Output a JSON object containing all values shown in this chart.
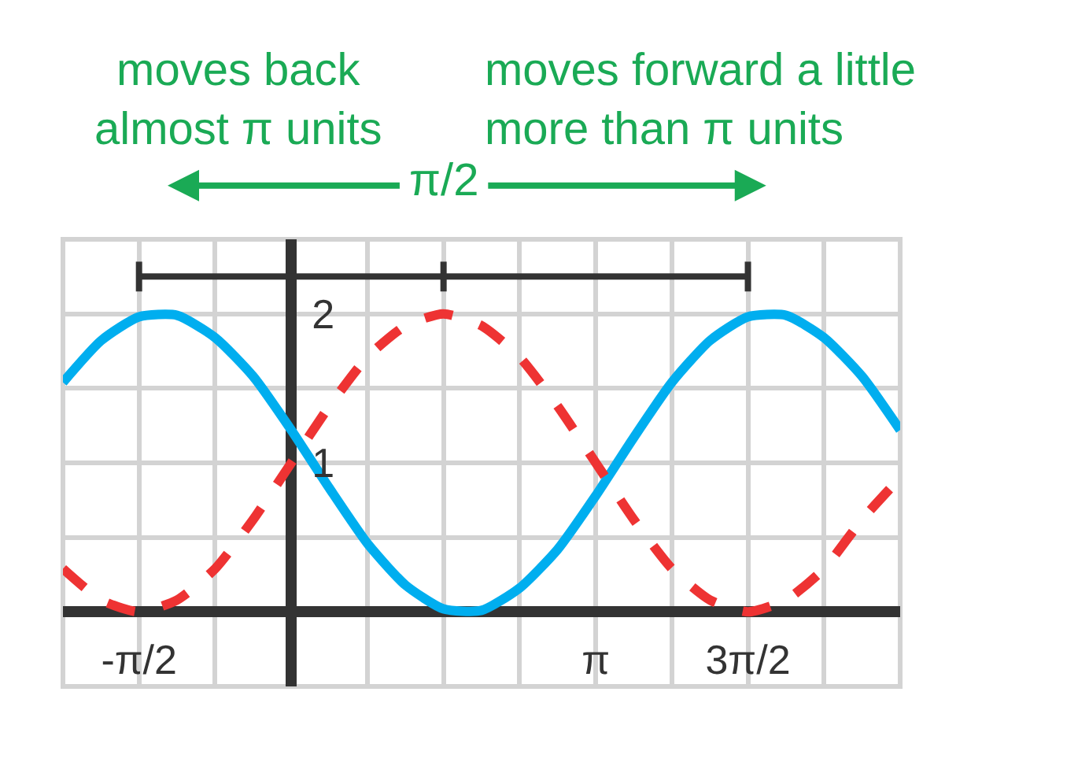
{
  "chart_data": {
    "type": "line",
    "x": [
      -2.356,
      -1.963,
      -1.571,
      -1.178,
      -0.785,
      -0.393,
      0,
      0.393,
      0.785,
      1.178,
      1.571,
      1.963,
      2.356,
      2.749,
      3.142,
      3.534,
      3.927,
      4.32,
      4.712,
      5.105,
      5.498,
      5.89,
      6.283
    ],
    "series": [
      {
        "color": "#00aeef",
        "line_style": "solid",
        "values": [
          1.54,
          1.82,
          1.98,
          1.99,
          1.84,
          1.58,
          1.22,
          0.83,
          0.46,
          0.18,
          0.02,
          0.01,
          0.16,
          0.42,
          0.78,
          1.17,
          1.54,
          1.82,
          1.98,
          1.99,
          1.84,
          1.58,
          1.22
        ]
      },
      {
        "color": "#ee3333",
        "line_style": "dashed",
        "values": [
          0.29,
          0.08,
          0,
          0.08,
          0.29,
          0.62,
          1,
          1.38,
          1.71,
          1.92,
          2,
          1.92,
          1.71,
          1.38,
          1,
          0.62,
          0.29,
          0.08,
          0,
          0.08,
          0.29,
          0.62,
          0.9
        ]
      },
      {
        "color": "#333333",
        "line_style": "solid",
        "x": [
          -1.571,
          1.571,
          4.712
        ],
        "values": [
          2.25,
          2.25,
          2.25
        ],
        "errors": [
          0.1,
          0.1,
          0.1
        ]
      }
    ],
    "xlim": [
      -2.356,
      6.283
    ],
    "ylim": [
      -0.5,
      2.5
    ],
    "xticks": [
      {
        "value": -2.356,
        "label": null
      },
      {
        "value": -1.571,
        "label": "-π/2"
      },
      {
        "value": -0.785,
        "label": null
      },
      {
        "value": 0,
        "label": null
      },
      {
        "value": 0.785,
        "label": null
      },
      {
        "value": 1.571,
        "label": null
      },
      {
        "value": 2.356,
        "label": null
      },
      {
        "value": 3.142,
        "label": "π"
      },
      {
        "value": 3.927,
        "label": null
      },
      {
        "value": 4.712,
        "label": "3π/2"
      },
      {
        "value": 5.498,
        "label": null
      },
      {
        "value": 6.283,
        "label": null
      }
    ],
    "yticks": [
      {
        "value": -0.5,
        "label": null
      },
      {
        "value": 0,
        "label": null
      },
      {
        "value": 0.5,
        "label": null
      },
      1,
      {
        "value": 1.5,
        "label": null
      },
      2,
      {
        "value": 2.5,
        "label": null
      }
    ],
    "grid": true,
    "marker": "none",
    "annotations": [
      "moves back\nalmost π units",
      "moves forward a little\nmore than π units",
      "π/2"
    ]
  }
}
